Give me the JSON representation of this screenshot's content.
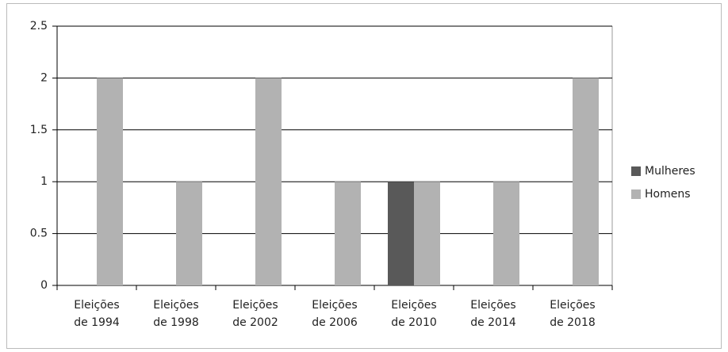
{
  "chart_data": {
    "type": "bar",
    "categories": [
      "Eleições de 1994",
      "Eleições de 1998",
      "Eleições de 2002",
      "Eleições de 2006",
      "Eleições de 2010",
      "Eleições de 2014",
      "Eleições de 2018"
    ],
    "series": [
      {
        "name": "Mulheres",
        "color": "#595959",
        "values": [
          0,
          0,
          0,
          0,
          1,
          0,
          0
        ]
      },
      {
        "name": "Homens",
        "color": "#b2b2b2",
        "values": [
          2,
          1,
          2,
          1,
          1,
          1,
          2
        ]
      }
    ],
    "ylim": [
      0,
      2.5
    ],
    "yticks": [
      0,
      0.5,
      1,
      1.5,
      2,
      2.5
    ],
    "grid": true,
    "legend": "right"
  }
}
